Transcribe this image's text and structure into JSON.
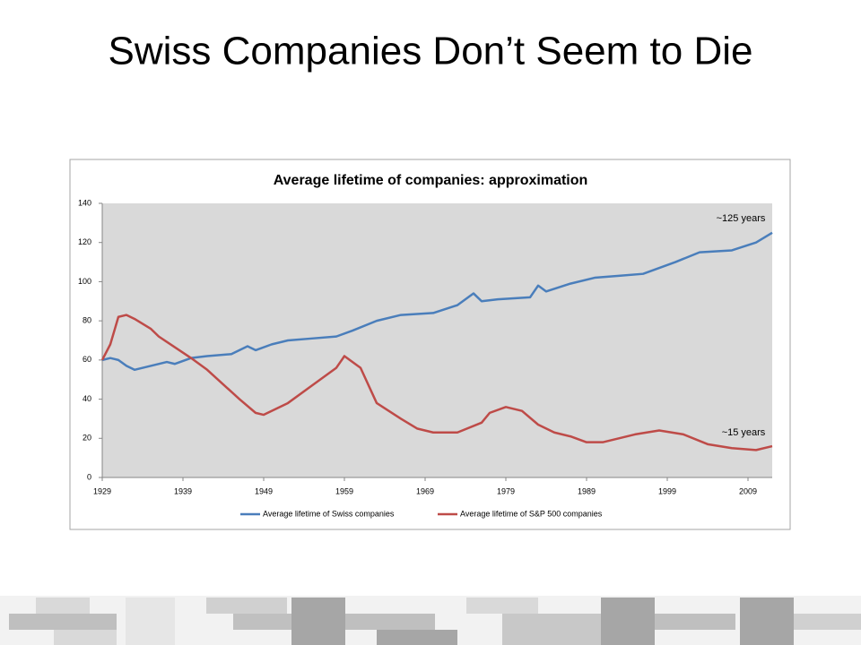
{
  "slide_title": "Swiss Companies Don’t Seem to Die",
  "chart_data": {
    "type": "line",
    "title": "Average lifetime of companies: approximation",
    "xlim": [
      1929,
      2012
    ],
    "xticks": [
      1929,
      1939,
      1949,
      1959,
      1969,
      1979,
      1989,
      1999,
      2009
    ],
    "ylim": [
      0,
      140
    ],
    "yticks": [
      0,
      20,
      40,
      60,
      80,
      100,
      120,
      140
    ],
    "grid": false,
    "legend": "bottom",
    "annotations": [
      "~125 years",
      "~15 years"
    ],
    "series": [
      {
        "name": "Average lifetime of Swiss companies",
        "color": "#4a7ebb",
        "x": [
          1929,
          1930,
          1931,
          1932,
          1933,
          1935,
          1937,
          1938,
          1940,
          1942,
          1945,
          1947,
          1948,
          1950,
          1952,
          1955,
          1958,
          1960,
          1963,
          1966,
          1970,
          1973,
          1975,
          1976,
          1978,
          1982,
          1983,
          1984,
          1987,
          1990,
          1993,
          1996,
          2000,
          2003,
          2007,
          2010,
          2012
        ],
        "values": [
          60,
          61,
          60,
          57,
          55,
          57,
          59,
          58,
          61,
          62,
          63,
          67,
          65,
          68,
          70,
          71,
          72,
          75,
          80,
          83,
          84,
          88,
          94,
          90,
          91,
          92,
          98,
          95,
          99,
          102,
          103,
          104,
          110,
          115,
          116,
          120,
          125
        ]
      },
      {
        "name": "Average lifetime of S&P 500 companies",
        "color": "#be4b48",
        "x": [
          1929,
          1930,
          1931,
          1932,
          1933,
          1935,
          1936,
          1940,
          1942,
          1946,
          1948,
          1949,
          1952,
          1955,
          1958,
          1959,
          1961,
          1963,
          1966,
          1968,
          1970,
          1973,
          1976,
          1977,
          1979,
          1981,
          1983,
          1985,
          1987,
          1989,
          1991,
          1995,
          1998,
          2001,
          2004,
          2007,
          2010,
          2012
        ],
        "values": [
          60,
          68,
          82,
          83,
          81,
          76,
          72,
          61,
          55,
          40,
          33,
          32,
          38,
          47,
          56,
          62,
          56,
          38,
          30,
          25,
          23,
          23,
          28,
          33,
          36,
          34,
          27,
          23,
          21,
          18,
          18,
          22,
          24,
          22,
          17,
          15,
          14,
          16
        ]
      }
    ]
  }
}
